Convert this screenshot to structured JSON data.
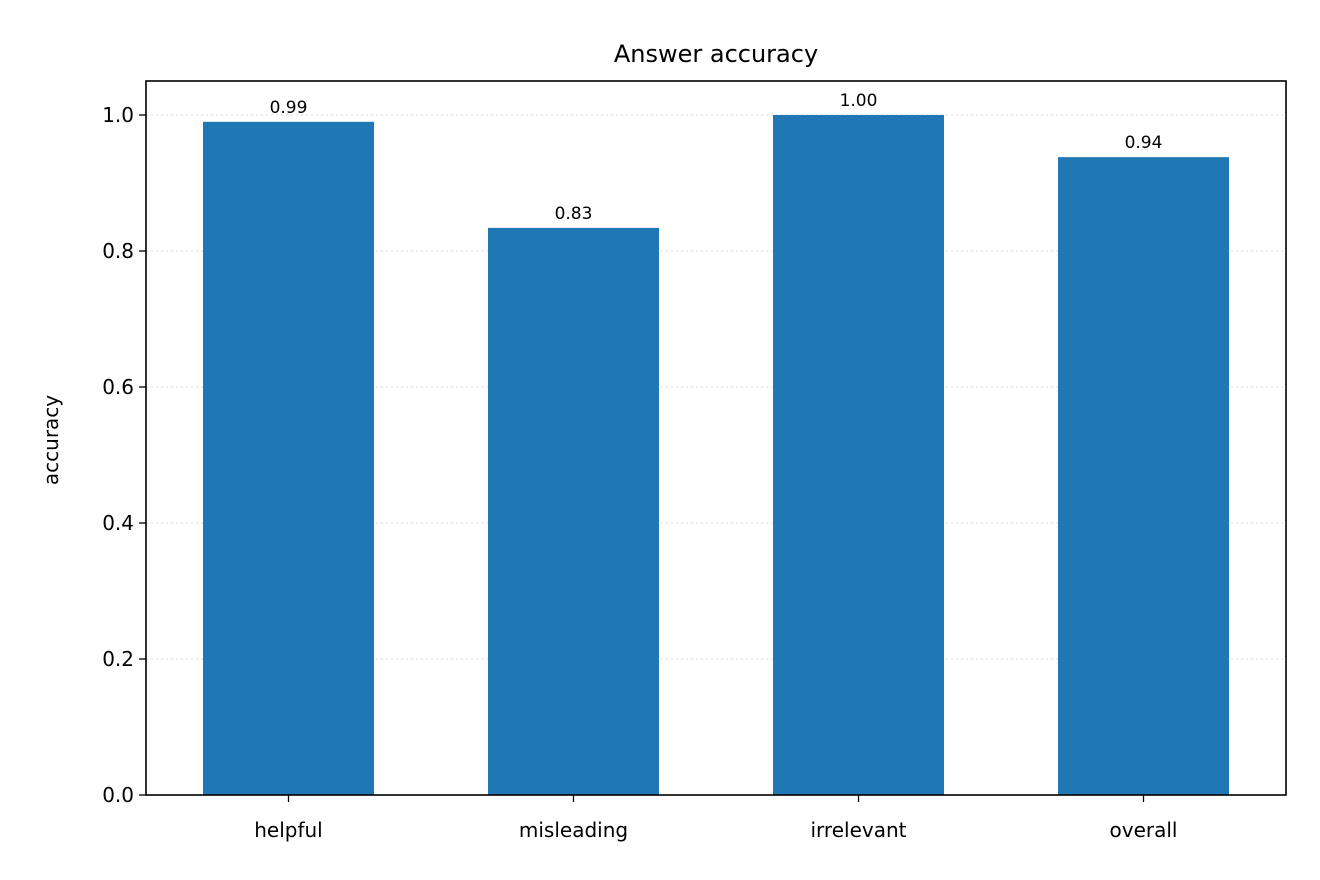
{
  "chart_data": {
    "type": "bar",
    "title": "Answer accuracy",
    "xlabel": "",
    "ylabel": "accuracy",
    "categories": [
      "helpful",
      "misleading",
      "irrelevant",
      "overall"
    ],
    "values": [
      0.99,
      0.834,
      1.0,
      0.938
    ],
    "value_labels": [
      "0.99",
      "0.83",
      "1.00",
      "0.94"
    ],
    "ylim": [
      0,
      1.05
    ],
    "yticks": [
      0.0,
      0.2,
      0.4,
      0.6,
      0.8,
      1.0
    ],
    "ytick_labels": [
      "0.0",
      "0.2",
      "0.4",
      "0.6",
      "0.8",
      "1.0"
    ],
    "bar_color": "#1f77b4",
    "grid": "horizontal dotted",
    "legend": "none"
  }
}
